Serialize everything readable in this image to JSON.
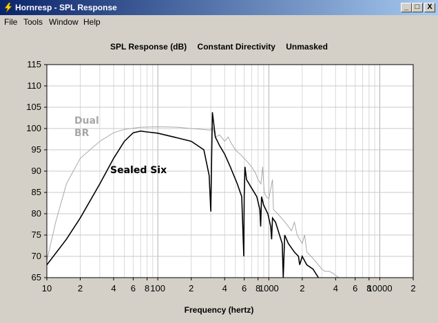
{
  "window": {
    "title": "Hornresp - SPL Response",
    "buttons": [
      "_",
      "□",
      "X"
    ]
  },
  "menu": {
    "items": [
      "File",
      "Tools",
      "Window",
      "Help"
    ]
  },
  "chart_data": {
    "type": "line",
    "title_parts": [
      "SPL Response (dB)",
      "Constant Directivity",
      "Unmasked"
    ],
    "xlabel": "Frequency (hertz)",
    "ylabel": "",
    "xscale": "log",
    "xlim": [
      10,
      20000
    ],
    "ylim": [
      65,
      115
    ],
    "yticks": [
      65,
      70,
      75,
      80,
      85,
      90,
      95,
      100,
      105,
      110,
      115
    ],
    "xtick_labels": [
      {
        "v": 10,
        "t": "10"
      },
      {
        "v": 20,
        "t": "2"
      },
      {
        "v": 40,
        "t": "4"
      },
      {
        "v": 60,
        "t": "6"
      },
      {
        "v": 80,
        "t": "8"
      },
      {
        "v": 100,
        "t": "100"
      },
      {
        "v": 200,
        "t": "2"
      },
      {
        "v": 400,
        "t": "4"
      },
      {
        "v": 600,
        "t": "6"
      },
      {
        "v": 800,
        "t": "8"
      },
      {
        "v": 1000,
        "t": "1000"
      },
      {
        "v": 2000,
        "t": "2"
      },
      {
        "v": 4000,
        "t": "4"
      },
      {
        "v": 6000,
        "t": "6"
      },
      {
        "v": 8000,
        "t": "8"
      },
      {
        "v": 10000,
        "t": "10000"
      },
      {
        "v": 20000,
        "t": "2"
      }
    ],
    "grid": true,
    "annotations": [
      {
        "text": "Dual",
        "color": "#a8a8a8"
      },
      {
        "text": "BR",
        "color": "#a8a8a8"
      },
      {
        "text": "Sealed Six",
        "color": "#000000"
      }
    ],
    "series": [
      {
        "color": "#000000",
        "points": [
          [
            10,
            68
          ],
          [
            15,
            74
          ],
          [
            20,
            79
          ],
          [
            30,
            87
          ],
          [
            40,
            93
          ],
          [
            50,
            97
          ],
          [
            60,
            99
          ],
          [
            70,
            99.4
          ],
          [
            80,
            99.2
          ],
          [
            100,
            98.9
          ],
          [
            150,
            97.8
          ],
          [
            200,
            97
          ],
          [
            260,
            95
          ],
          [
            290,
            89
          ],
          [
            300,
            80.5
          ],
          [
            305,
            92
          ],
          [
            310,
            103.8
          ],
          [
            330,
            98
          ],
          [
            360,
            96
          ],
          [
            400,
            94
          ],
          [
            450,
            91
          ],
          [
            520,
            87
          ],
          [
            570,
            84
          ],
          [
            595,
            70
          ],
          [
            600,
            84
          ],
          [
            610,
            91
          ],
          [
            630,
            88
          ],
          [
            700,
            86
          ],
          [
            780,
            84
          ],
          [
            830,
            81
          ],
          [
            845,
            77
          ],
          [
            860,
            84
          ],
          [
            900,
            82
          ],
          [
            980,
            80
          ],
          [
            1040,
            77
          ],
          [
            1060,
            74
          ],
          [
            1080,
            79
          ],
          [
            1150,
            78
          ],
          [
            1250,
            75
          ],
          [
            1320,
            73
          ],
          [
            1350,
            65
          ],
          [
            1390,
            75
          ],
          [
            1500,
            73
          ],
          [
            1700,
            71
          ],
          [
            1850,
            70
          ],
          [
            1900,
            68
          ],
          [
            2000,
            70
          ],
          [
            2200,
            68
          ],
          [
            2500,
            67
          ],
          [
            2800,
            65
          ]
        ]
      },
      {
        "color": "#a8a8a8",
        "points": [
          [
            10,
            69
          ],
          [
            12,
            78
          ],
          [
            15,
            87
          ],
          [
            20,
            93
          ],
          [
            30,
            97
          ],
          [
            40,
            99
          ],
          [
            50,
            99.8
          ],
          [
            70,
            100.3
          ],
          [
            100,
            100.4
          ],
          [
            150,
            100.3
          ],
          [
            200,
            100
          ],
          [
            250,
            99.8
          ],
          [
            300,
            99.6
          ],
          [
            310,
            100.5
          ],
          [
            330,
            98
          ],
          [
            360,
            98.5
          ],
          [
            400,
            97
          ],
          [
            430,
            98
          ],
          [
            460,
            96.5
          ],
          [
            500,
            95
          ],
          [
            550,
            94
          ],
          [
            600,
            93
          ],
          [
            650,
            92
          ],
          [
            700,
            91
          ],
          [
            760,
            89.5
          ],
          [
            800,
            88
          ],
          [
            850,
            87
          ],
          [
            880,
            91
          ],
          [
            910,
            85
          ],
          [
            950,
            84
          ],
          [
            1000,
            83.5
          ],
          [
            1080,
            88
          ],
          [
            1100,
            81
          ],
          [
            1200,
            80
          ],
          [
            1300,
            79
          ],
          [
            1400,
            78
          ],
          [
            1500,
            77
          ],
          [
            1600,
            76
          ],
          [
            1700,
            78
          ],
          [
            1800,
            75
          ],
          [
            1900,
            74
          ],
          [
            2000,
            73
          ],
          [
            2100,
            75
          ],
          [
            2200,
            71
          ],
          [
            2400,
            70
          ],
          [
            2600,
            69
          ],
          [
            2800,
            68
          ],
          [
            3000,
            67
          ],
          [
            3200,
            66.5
          ],
          [
            3500,
            66.5
          ],
          [
            3800,
            66
          ],
          [
            4000,
            65.5
          ],
          [
            4300,
            65
          ]
        ]
      }
    ]
  }
}
